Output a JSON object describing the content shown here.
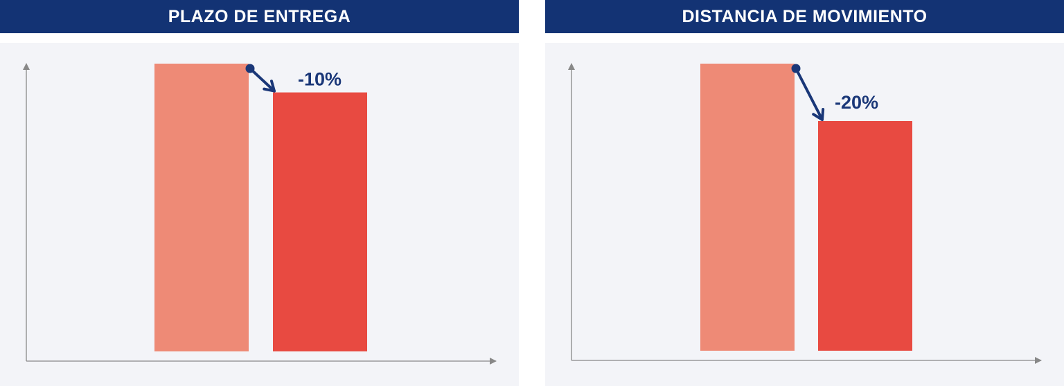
{
  "colors": {
    "header_bg": "#133374",
    "header_text": "#ffffff",
    "panel_bg": "#f3f4f8",
    "bar_before": "#ee8a76",
    "bar_after": "#e84a41",
    "annotation": "#1a3778",
    "axis": "#888888"
  },
  "chart_data": [
    {
      "type": "bar",
      "title": "PLAZO DE ENTREGA",
      "categories": [
        "",
        ""
      ],
      "values": [
        100,
        90
      ],
      "ylim": [
        0,
        100
      ],
      "axis_ticks": false,
      "grid": false,
      "annotation": {
        "text": "-10%",
        "from_index": 0,
        "to_index": 1
      }
    },
    {
      "type": "bar",
      "title": "DISTANCIA DE MOVIMIENTO",
      "categories": [
        "",
        ""
      ],
      "values": [
        100,
        80
      ],
      "ylim": [
        0,
        100
      ],
      "axis_ticks": false,
      "grid": false,
      "annotation": {
        "text": "-20%",
        "from_index": 0,
        "to_index": 1
      }
    }
  ]
}
